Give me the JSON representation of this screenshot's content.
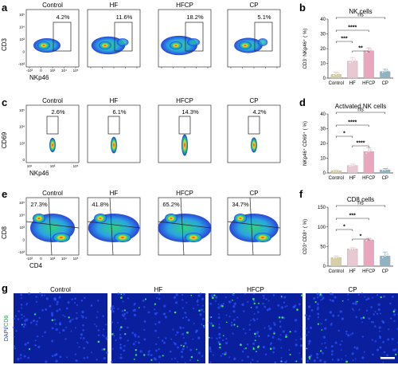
{
  "panel_letters": [
    "a",
    "b",
    "c",
    "d",
    "e",
    "f",
    "g"
  ],
  "groups": [
    "Control",
    "HF",
    "HFCP",
    "CP"
  ],
  "colors": {
    "Control": "#d7cfa6",
    "HF": "#e8c9d2",
    "HFCP": "#eaa6bd",
    "CP": "#8fb3c2",
    "gate": "#222222",
    "flow_low": "#1f3bd6",
    "flow_mid": "#24d07a",
    "flow_high": "#ff2a1a",
    "micro_bg": "#0a1f9e",
    "micro_dot": "#38e06a"
  },
  "flow_rows": [
    {
      "letter": "a",
      "x_label": "NKp46",
      "y_label": "CD3",
      "x_ticks": [
        "-10³",
        "0",
        "10³",
        "10⁴",
        "10⁵"
      ],
      "y_ticks": [
        "10⁵",
        "10⁴",
        "10³",
        "0",
        "-10³"
      ],
      "percents": [
        "4.2%",
        "11.6%",
        "18.2%",
        "5.1%"
      ]
    },
    {
      "letter": "c",
      "x_label": "NKp46",
      "y_label": "CD69",
      "x_ticks": [
        "10¹",
        "10³",
        "10⁵"
      ],
      "y_ticks": [
        "10⁵",
        "10⁴",
        "10³",
        "0"
      ],
      "percents": [
        "2.6%",
        "6.1%",
        "14.3%",
        "4.2%"
      ]
    },
    {
      "letter": "e",
      "x_label": "CD4",
      "y_label": "CD8",
      "x_ticks": [
        "-10³",
        "0",
        "10³",
        "10⁴",
        "10⁵"
      ],
      "y_ticks": [
        "10⁵",
        "10⁴",
        "10³",
        "0",
        "-10³"
      ],
      "percents": [
        "27.3%",
        "41.8%",
        "65.2%",
        "34.7%"
      ]
    }
  ],
  "chart_data": [
    {
      "letter": "b",
      "type": "bar",
      "title": "NK cells",
      "ylabel": "CD3⁻NKp46⁺ ( %)",
      "categories": [
        "Control",
        "HF",
        "HFCP",
        "CP"
      ],
      "values": [
        2.5,
        11.5,
        18.5,
        4.5
      ],
      "errors": [
        1.5,
        2.5,
        2.0,
        1.5
      ],
      "ylim": [
        0,
        40
      ],
      "yticks": [
        0,
        10,
        20,
        30,
        40
      ],
      "significance": [
        {
          "from": 0,
          "to": 3,
          "label": "ns"
        },
        {
          "from": 0,
          "to": 2,
          "label": "****"
        },
        {
          "from": 0,
          "to": 1,
          "label": "***"
        },
        {
          "from": 1,
          "to": 2,
          "label": "**"
        }
      ]
    },
    {
      "letter": "d",
      "type": "bar",
      "title": "Activated NK cells",
      "ylabel": "NKp46⁺ CD69⁺ ( %)",
      "categories": [
        "Control",
        "HF",
        "HFCP",
        "CP"
      ],
      "values": [
        1.5,
        5.0,
        14.5,
        2.0
      ],
      "errors": [
        0.5,
        1.0,
        2.5,
        1.0
      ],
      "ylim": [
        0,
        40
      ],
      "yticks": [
        0,
        10,
        20,
        30,
        40
      ],
      "significance": [
        {
          "from": 0,
          "to": 3,
          "label": "ns"
        },
        {
          "from": 0,
          "to": 2,
          "label": "****"
        },
        {
          "from": 0,
          "to": 1,
          "label": "*"
        },
        {
          "from": 1,
          "to": 2,
          "label": "****"
        }
      ]
    },
    {
      "letter": "f",
      "type": "bar",
      "title": "CD8 cells",
      "ylabel": "CD3⁺CD8⁺ ( %)",
      "categories": [
        "Control",
        "HF",
        "HFCP",
        "CP"
      ],
      "values": [
        22,
        44,
        67,
        26
      ],
      "errors": [
        4,
        3,
        4,
        10
      ],
      "ylim": [
        0,
        150
      ],
      "yticks": [
        0,
        50,
        100,
        150
      ],
      "significance": [
        {
          "from": 0,
          "to": 3,
          "label": "ns"
        },
        {
          "from": 0,
          "to": 2,
          "label": "***"
        },
        {
          "from": 0,
          "to": 1,
          "label": "*"
        },
        {
          "from": 1,
          "to": 2,
          "label": "*"
        }
      ]
    }
  ],
  "micro": {
    "letter": "g",
    "ylabel_part1": "DAPI/",
    "ylabel_part2": "CD8",
    "labels": [
      "Control",
      "HF",
      "HFCP",
      "CP"
    ],
    "dot_density": [
      0.15,
      0.55,
      0.9,
      0.35
    ]
  }
}
